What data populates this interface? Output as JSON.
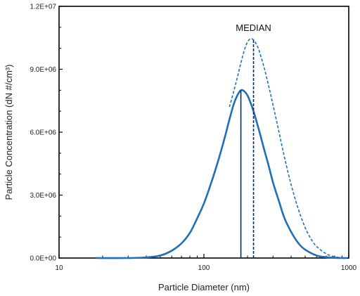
{
  "chart_data": {
    "type": "line",
    "title": "",
    "xlabel": "Particle Diameter (nm)",
    "ylabel": "Particle Concentration (dN #/cm³)",
    "xscale": "log",
    "xlim": [
      10,
      1000
    ],
    "ylim": [
      0,
      12000000
    ],
    "x_ticks": [
      {
        "value": 10,
        "label": "10"
      },
      {
        "value": 100,
        "label": "100"
      },
      {
        "value": 1000,
        "label": "1000"
      }
    ],
    "y_ticks": [
      {
        "value": 0,
        "label": "0.0E+00"
      },
      {
        "value": 3000000,
        "label": "3.0E+06"
      },
      {
        "value": 6000000,
        "label": "6.0E+06"
      },
      {
        "value": 9000000,
        "label": "9.0E+06"
      },
      {
        "value": 12000000,
        "label": "1.2E+07"
      }
    ],
    "grid": false,
    "legend": "none",
    "series": [
      {
        "style": "solid",
        "color": "#1f6fb8",
        "x": [
          18,
          30,
          40,
          50,
          60,
          70,
          80,
          90,
          100,
          110,
          120,
          130,
          140,
          150,
          160,
          170,
          180,
          190,
          200,
          210,
          220,
          240,
          260,
          280,
          300,
          330,
          360,
          400,
          450,
          500,
          600,
          700,
          800,
          900,
          970
        ],
        "y": [
          0,
          0,
          30000,
          120000,
          350000,
          700000,
          1200000,
          1900000,
          2600000,
          3400000,
          4200000,
          5000000,
          5800000,
          6600000,
          7300000,
          7750000,
          8000000,
          7950000,
          7750000,
          7400000,
          7000000,
          6100000,
          5200000,
          4400000,
          3600000,
          2700000,
          1900000,
          1250000,
          700000,
          400000,
          120000,
          40000,
          10000,
          0,
          0
        ]
      },
      {
        "style": "dashed",
        "color": "#1f6fb8",
        "x": [
          150,
          160,
          170,
          180,
          190,
          200,
          210,
          220,
          230,
          240,
          260,
          280,
          300,
          330,
          360,
          400,
          450,
          500,
          550,
          600,
          700,
          800,
          900,
          970
        ],
        "y": [
          7200000,
          7900000,
          8600000,
          9300000,
          9900000,
          10300000,
          10450000,
          10400000,
          10200000,
          9900000,
          9100000,
          8200000,
          7300000,
          6000000,
          4800000,
          3500000,
          2300000,
          1450000,
          900000,
          550000,
          200000,
          60000,
          15000,
          0
        ]
      }
    ],
    "markers": [
      {
        "style": "solid",
        "x": 180,
        "y": 8000000
      },
      {
        "style": "dashed",
        "x": 220,
        "y": 10450000
      }
    ],
    "annotation": "MEDIAN"
  }
}
